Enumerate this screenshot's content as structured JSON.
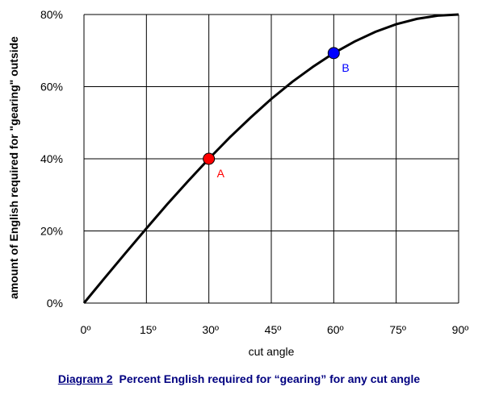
{
  "chart_data": {
    "type": "line",
    "xlabel": "cut angle",
    "ylabel": "amount of English required for \"gearing\" outside",
    "xlim": [
      0,
      90
    ],
    "ylim": [
      0,
      80
    ],
    "x_ticks": [
      "0º",
      "15º",
      "30º",
      "45º",
      "60º",
      "75º",
      "90º"
    ],
    "y_ticks": [
      "0%",
      "20%",
      "40%",
      "60%",
      "80%"
    ],
    "grid": true,
    "series": [
      {
        "x": [
          0,
          5,
          10,
          15,
          20,
          25,
          30,
          35,
          40,
          45,
          50,
          55,
          60,
          65,
          70,
          75,
          80,
          85,
          90
        ],
        "y": [
          0,
          7.0,
          13.9,
          20.7,
          27.4,
          33.8,
          40.0,
          45.9,
          51.4,
          56.6,
          61.3,
          65.5,
          69.3,
          72.5,
          75.2,
          77.3,
          78.8,
          79.7,
          80.0
        ]
      }
    ],
    "points": [
      {
        "label": "A",
        "x": 30,
        "y": 40,
        "color": "#ff0000"
      },
      {
        "label": "B",
        "x": 60,
        "y": 69.3,
        "color": "#0000ff"
      }
    ]
  },
  "caption": {
    "label": "Diagram 2",
    "text": "Percent English required for “gearing” for any cut angle"
  },
  "colors": {
    "curve": "#000000",
    "grid": "#000000",
    "caption": "#000080",
    "point_a": "#ff0000",
    "point_b": "#0000ff"
  }
}
